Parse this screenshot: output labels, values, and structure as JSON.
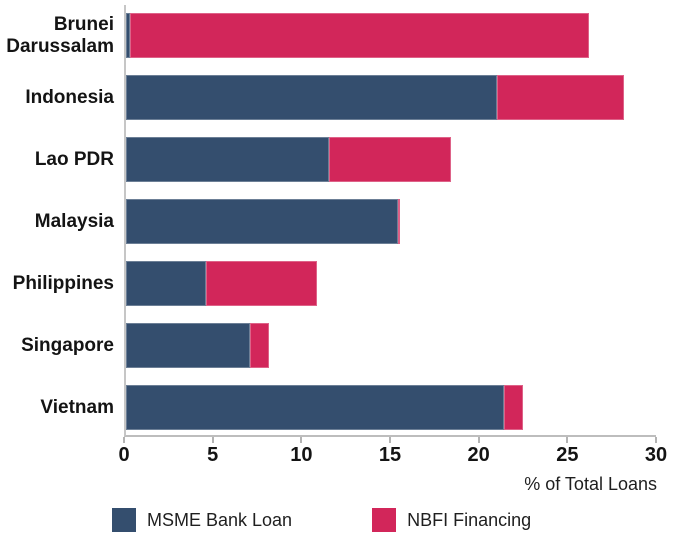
{
  "chart_data": {
    "type": "bar",
    "orientation": "horizontal",
    "stacked": true,
    "grid": false,
    "legend_position": "bottom",
    "categories": [
      "Brunei Darussalam",
      "Indonesia",
      "Lao PDR",
      "Malaysia",
      "Philippines",
      "Singapore",
      "Vietnam"
    ],
    "series": [
      {
        "name": "MSME Bank Loan",
        "color": "#344E6E",
        "values": [
          0.2,
          21.0,
          11.5,
          15.4,
          4.5,
          7.0,
          21.4
        ]
      },
      {
        "name": "NBFI Financing",
        "color": "#D2265A",
        "values": [
          26.0,
          7.2,
          6.9,
          0.1,
          6.3,
          1.1,
          1.1
        ]
      }
    ],
    "xlabel": "% of Total Loans",
    "xlim": [
      0,
      30
    ],
    "xticks": [
      "0",
      "5",
      "10",
      "15",
      "20",
      "25",
      "30"
    ]
  }
}
